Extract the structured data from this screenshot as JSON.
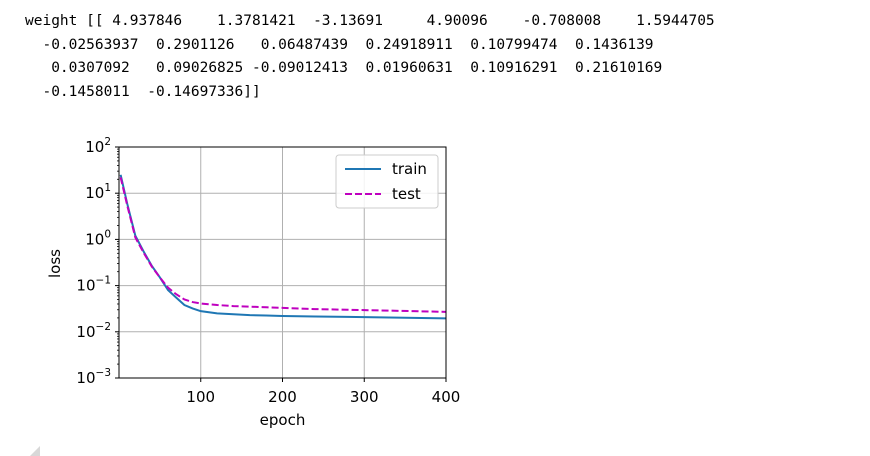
{
  "output": {
    "lines": [
      "weight [[ 4.937846    1.3781421  -3.13691     4.90096    -0.708008    1.5944705",
      "  -0.02563937  0.2901126   0.06487439  0.24918911  0.10799474  0.1436139",
      "   0.0307092   0.09026825 -0.09012413  0.01960631  0.10916291  0.21610169",
      "  -0.1458011  -0.14697336]]"
    ]
  },
  "chart_data": {
    "type": "line",
    "title": "",
    "xlabel": "epoch",
    "ylabel": "loss",
    "xlim": [
      0,
      400
    ],
    "ylim": [
      0.001,
      100
    ],
    "yscale": "log",
    "grid": true,
    "legend_position": "top-right",
    "x_ticks": [
      100,
      200,
      300,
      400
    ],
    "x_tick_labels": [
      "100",
      "200",
      "300",
      "400"
    ],
    "y_ticks": [
      0.001,
      0.01,
      0.1,
      1,
      10,
      100
    ],
    "y_tick_labels": [
      {
        "base": "10",
        "exp": "−3"
      },
      {
        "base": "10",
        "exp": "−2"
      },
      {
        "base": "10",
        "exp": "−1"
      },
      {
        "base": "10",
        "exp": "0"
      },
      {
        "base": "10",
        "exp": "1"
      },
      {
        "base": "10",
        "exp": "2"
      }
    ],
    "x": [
      2,
      10,
      20,
      30,
      40,
      50,
      60,
      70,
      80,
      90,
      100,
      120,
      140,
      160,
      180,
      200,
      240,
      280,
      320,
      360,
      400
    ],
    "series": [
      {
        "name": "train",
        "color": "#1f77b4",
        "dash": "solid",
        "values": [
          25,
          6.0,
          1.2,
          0.55,
          0.27,
          0.15,
          0.08,
          0.055,
          0.038,
          0.032,
          0.028,
          0.025,
          0.024,
          0.023,
          0.0225,
          0.022,
          0.0215,
          0.021,
          0.0205,
          0.02,
          0.0195
        ]
      },
      {
        "name": "test",
        "color": "#bf00bf",
        "dash": "dashed",
        "values": [
          22,
          5.5,
          1.1,
          0.52,
          0.26,
          0.15,
          0.09,
          0.065,
          0.05,
          0.044,
          0.041,
          0.038,
          0.036,
          0.035,
          0.034,
          0.033,
          0.031,
          0.03,
          0.029,
          0.028,
          0.027
        ]
      }
    ]
  }
}
